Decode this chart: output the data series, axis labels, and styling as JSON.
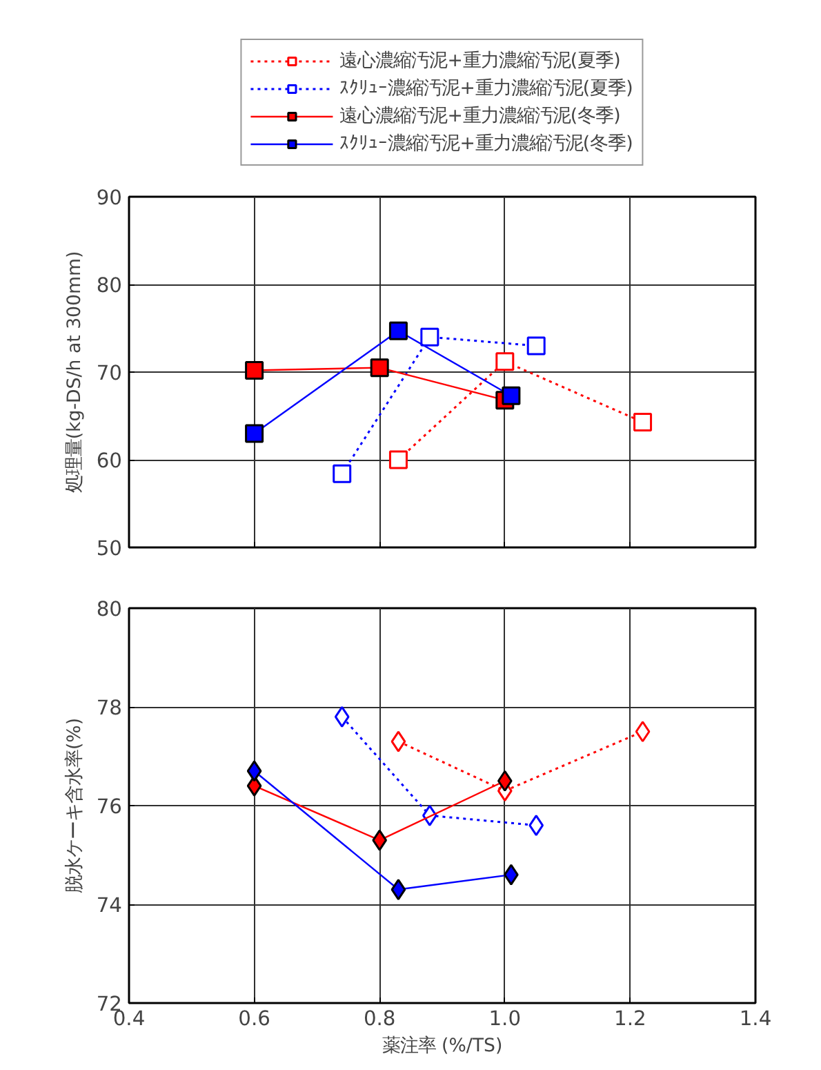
{
  "chart_data": [
    {
      "type": "line",
      "ylabel": "処理量(kg-DS/h at 300mm)",
      "xlim": [
        0.4,
        1.4
      ],
      "xticks": [
        0.4,
        0.6,
        0.8,
        1,
        1.2,
        1.4
      ],
      "ylim": [
        50,
        90
      ],
      "yticks": [
        50,
        60,
        70,
        80,
        90
      ],
      "tick_labels": "y",
      "grid": true,
      "legend": "top",
      "marker": "square",
      "series": [
        {
          "name": "遠心濃縮汚泥+重力濃縮汚泥(夏季)",
          "color": "#ff0000",
          "line_style": "dotted",
          "x": [
            0.83,
            1.0,
            1.22
          ],
          "values": [
            60.0,
            71.2,
            64.3
          ]
        },
        {
          "name": "ｽｸﾘｭｰ濃縮汚泥+重力濃縮汚泥(夏季)",
          "color": "#0000ff",
          "line_style": "dotted",
          "x": [
            0.74,
            0.88,
            1.05
          ],
          "values": [
            58.4,
            74.0,
            73.0
          ]
        },
        {
          "name": "遠心濃縮汚泥+重力濃縮汚泥(冬季)",
          "color": "#ff0000",
          "line_style": "solid",
          "x": [
            0.6,
            0.8,
            1.0
          ],
          "values": [
            70.2,
            70.5,
            66.8
          ]
        },
        {
          "name": "ｽｸﾘｭｰ濃縮汚泥+重力濃縮汚泥(冬季)",
          "color": "#0000ff",
          "line_style": "solid",
          "x": [
            0.6,
            0.83,
            1.01
          ],
          "values": [
            63.0,
            74.7,
            67.3
          ]
        }
      ]
    },
    {
      "type": "line",
      "xlabel": "薬注率 (%/TS)",
      "ylabel": "脱水ケーキ含水率(%)",
      "xlim": [
        0.4,
        1.4
      ],
      "xticks": [
        0.4,
        0.6,
        0.8,
        {
          "value": 1,
          "label": "1.0"
        },
        1.2,
        1.4
      ],
      "ylim": [
        72,
        80
      ],
      "yticks": [
        72,
        74,
        76,
        78,
        80
      ],
      "grid": true,
      "marker": "diamond",
      "series": [
        {
          "color": "#ff0000",
          "line_style": "dotted",
          "x": [
            0.83,
            1.0,
            1.22
          ],
          "values": [
            77.3,
            76.3,
            77.5
          ]
        },
        {
          "color": "#0000ff",
          "line_style": "dotted",
          "x": [
            0.74,
            0.88,
            1.05
          ],
          "values": [
            77.8,
            75.8,
            75.6
          ]
        },
        {
          "color": "#ff0000",
          "line_style": "solid",
          "x": [
            0.6,
            0.8,
            1.0
          ],
          "values": [
            76.4,
            75.3,
            76.5
          ]
        },
        {
          "color": "#0000ff",
          "line_style": "solid",
          "x": [
            0.6,
            0.83,
            1.01
          ],
          "values": [
            76.7,
            74.3,
            74.6
          ]
        }
      ]
    }
  ]
}
